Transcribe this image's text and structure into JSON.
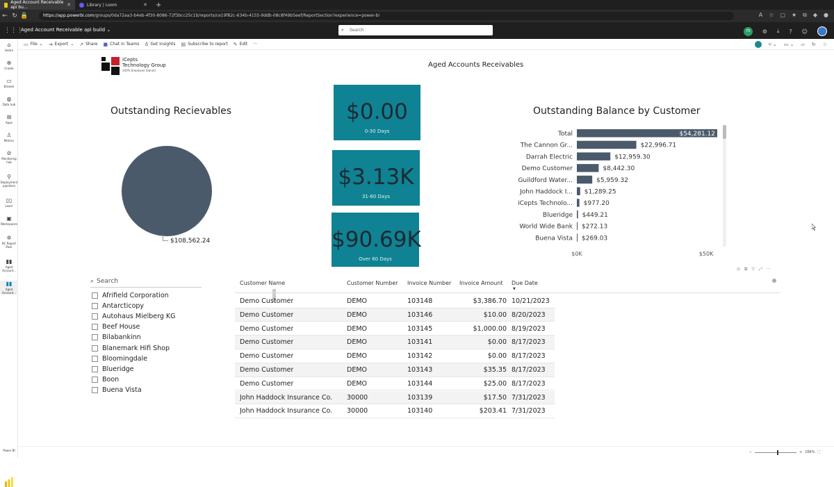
{
  "browser": {
    "tabs": [
      {
        "label": "Aged Account Receivable api bu…",
        "active": true
      },
      {
        "label": "Library | Loom",
        "active": false
      }
    ],
    "url_host": "https://app.powerbi.com",
    "url_path": "/groups/0da72aa3-b4eb-4f30-8086-72f3bcc25c1b/reports/ce19f82c-634b-4155-9ddb-08c8f49b5eef/ReportSection?experience=power-bi"
  },
  "appbar": {
    "report_name": "Aged Account Receivable api build",
    "search_placeholder": "Search",
    "notification_count": "79"
  },
  "leftnav": {
    "items": [
      "Home",
      "Create",
      "Browse",
      "Data hub",
      "Apps",
      "Metrics",
      "Monitoring hub",
      "Deployment pipelines",
      "Learn",
      "Workspaces",
      "BC Report Pack",
      "Aged Account...",
      "Aged Account..."
    ],
    "bottom": "Power BI"
  },
  "toolbar": {
    "file": "File",
    "export": "Export",
    "share": "Share",
    "chat": "Chat in Teams",
    "insights": "Get insights",
    "subscribe": "Subscribe to report",
    "edit": "Edit",
    "more": "···"
  },
  "report": {
    "logo_line1": "iCepts",
    "logo_line2": "Technology Group",
    "logo_line3": "100% Employee Owned",
    "title": "Aged Accounts Receivables"
  },
  "pie": {
    "title": "Outstanding Recievables",
    "label": "$108,562.24"
  },
  "cards": [
    {
      "value": "$0.00",
      "label": "0-30 Days"
    },
    {
      "value": "$3.13K",
      "label": "31-60 Days"
    },
    {
      "value": "$90.69K",
      "label": "Over 60 Days"
    }
  ],
  "chart_data": {
    "type": "bar",
    "orientation": "horizontal",
    "title": "Outstanding Balance by Customer",
    "categories": [
      "Total",
      "The Cannon Gr...",
      "Darrah Electric",
      "Demo Customer",
      "Guildford Water...",
      "John Haddock I...",
      "iCepts Technolo...",
      "Blueridge",
      "World Wide Bank",
      "Buena Vista"
    ],
    "values": [
      54281.12,
      22996.71,
      12959.3,
      8442.3,
      5959.32,
      1289.25,
      977.2,
      449.21,
      272.13,
      269.03
    ],
    "data_labels": [
      "$54,281.12",
      "$22,996.71",
      "$12,959.30",
      "$8,442.30",
      "$5,959.32",
      "$1,289.25",
      "$977.20",
      "$449.21",
      "$272.13",
      "$269.03"
    ],
    "x_ticks": [
      {
        "value": 0,
        "label": "$0K"
      },
      {
        "value": 50000,
        "label": "$50K"
      }
    ],
    "xlim": [
      0,
      54281.12
    ],
    "bar_color": "#4b5a6b"
  },
  "slicer": {
    "search_placeholder": "Search",
    "items": [
      "Afrifield Corporation",
      "Antarcticopy",
      "Autohaus Mielberg KG",
      "Beef House",
      "Bilabankinn",
      "Blanemark Hifi Shop",
      "Bloomingdale",
      "Blueridge",
      "Boon",
      "Buena Vista"
    ]
  },
  "table": {
    "headers": [
      "Customer Name",
      "Customer Number",
      "Invoice Number",
      "Invoice Amount",
      "Due Date"
    ],
    "rows": [
      [
        "Demo Customer",
        "DEMO",
        "103148",
        "$3,386.70",
        "10/21/2023"
      ],
      [
        "Demo Customer",
        "DEMO",
        "103146",
        "$10.00",
        "8/20/2023"
      ],
      [
        "Demo Customer",
        "DEMO",
        "103145",
        "$1,000.00",
        "8/19/2023"
      ],
      [
        "Demo Customer",
        "DEMO",
        "103141",
        "$0.00",
        "8/17/2023"
      ],
      [
        "Demo Customer",
        "DEMO",
        "103142",
        "$0.00",
        "8/17/2023"
      ],
      [
        "Demo Customer",
        "DEMO",
        "103143",
        "$35.35",
        "8/17/2023"
      ],
      [
        "Demo Customer",
        "DEMO",
        "103144",
        "$25.00",
        "8/17/2023"
      ],
      [
        "John Haddock Insurance Co.",
        "30000",
        "103139",
        "$17.50",
        "7/31/2023"
      ],
      [
        "John Haddock Insurance Co.",
        "30000",
        "103140",
        "$203.41",
        "7/31/2023"
      ]
    ]
  },
  "status": {
    "zoom": "166%"
  },
  "colors": {
    "card_bg": "#0f8293",
    "pie_fill": "#4b5a6b"
  }
}
